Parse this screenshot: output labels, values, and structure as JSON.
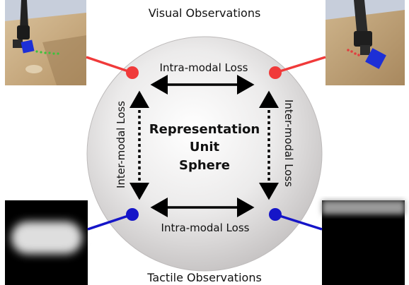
{
  "titles": {
    "visual": "Visual Observations",
    "tactile": "Tactile Observations"
  },
  "center": {
    "line1": "Representation",
    "line2": "Unit",
    "line3": "Sphere"
  },
  "edges": {
    "top": "Intra-modal Loss",
    "bottom": "Intra-modal Loss",
    "left": "Inter-modal Loss",
    "right": "Inter-modal Loss"
  },
  "colors": {
    "visual_link": "#f03a3a",
    "tactile_link": "#1515c8",
    "arrow": "#000000",
    "sphere_light": "#ffffff",
    "sphere_dark": "#c9c6c6"
  }
}
